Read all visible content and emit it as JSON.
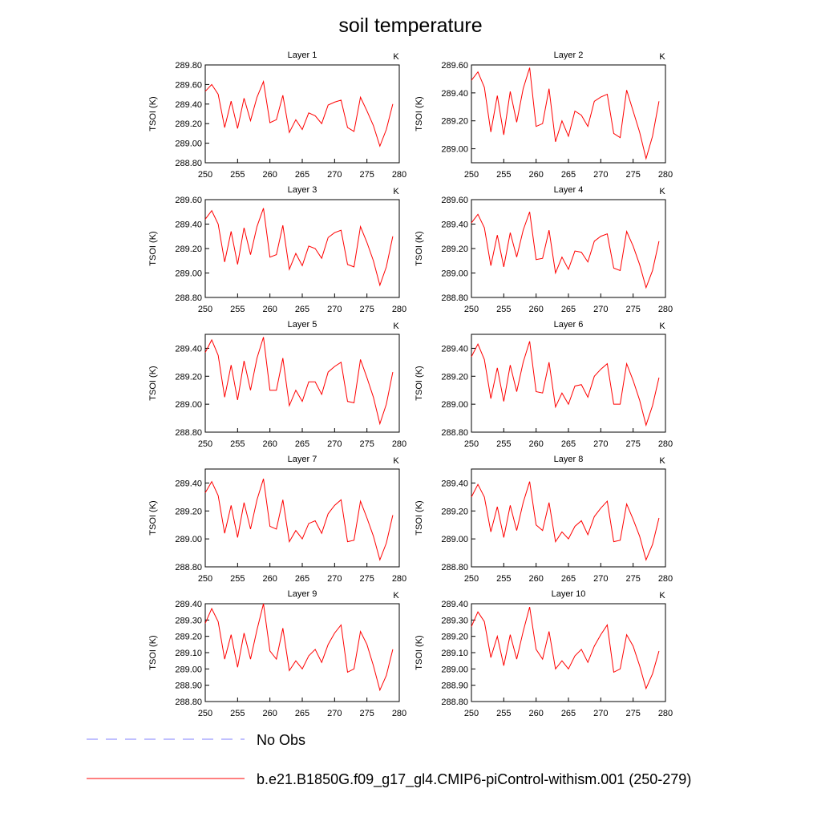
{
  "title": "soil temperature",
  "legend": [
    {
      "name": "No Obs",
      "color": "#8080ff",
      "dash": true
    },
    {
      "name": "b.e21.B1850G.f09_g17_gl4.CMIP6-piControl-withism.001 (250-279)",
      "color": "#ff0000",
      "dash": false
    }
  ],
  "chart_data": [
    {
      "type": "line",
      "title": "Layer 1",
      "unit": "K",
      "y_label": "TSOI  (K)",
      "color": "#ff0000",
      "x": [
        250,
        251,
        252,
        253,
        254,
        255,
        256,
        257,
        258,
        259,
        260,
        261,
        262,
        263,
        264,
        265,
        266,
        267,
        268,
        269,
        270,
        271,
        272,
        273,
        274,
        275,
        276,
        277,
        278,
        279
      ],
      "values": [
        289.53,
        289.6,
        289.5,
        289.16,
        289.43,
        289.15,
        289.46,
        289.23,
        289.47,
        289.63,
        289.21,
        289.24,
        289.49,
        289.11,
        289.24,
        289.14,
        289.31,
        289.28,
        289.2,
        289.39,
        289.42,
        289.44,
        289.16,
        289.12,
        289.47,
        289.33,
        289.18,
        288.97,
        289.14,
        289.4
      ],
      "xlim": [
        250,
        280
      ],
      "xticks": [
        250,
        255,
        260,
        265,
        270,
        275,
        280
      ],
      "ylim": [
        288.8,
        289.8
      ],
      "yticks": [
        {
          "value": 288.8,
          "label": "288.80"
        },
        {
          "value": 289.0,
          "label": "289.00"
        },
        {
          "value": 289.2,
          "label": "289.20"
        },
        {
          "value": 289.4,
          "label": "289.40"
        },
        {
          "value": 289.6,
          "label": "289.60"
        },
        {
          "value": 289.8,
          "label": "289.80"
        }
      ]
    },
    {
      "type": "line",
      "title": "Layer 2",
      "unit": "K",
      "y_label": "TSOI  (K)",
      "color": "#ff0000",
      "x": [
        250,
        251,
        252,
        253,
        254,
        255,
        256,
        257,
        258,
        259,
        260,
        261,
        262,
        263,
        264,
        265,
        266,
        267,
        268,
        269,
        270,
        271,
        272,
        273,
        274,
        275,
        276,
        277,
        278,
        279
      ],
      "values": [
        289.49,
        289.55,
        289.44,
        289.12,
        289.38,
        289.1,
        289.41,
        289.19,
        289.43,
        289.58,
        289.16,
        289.18,
        289.43,
        289.05,
        289.2,
        289.09,
        289.27,
        289.24,
        289.16,
        289.34,
        289.37,
        289.39,
        289.11,
        289.08,
        289.42,
        289.27,
        289.12,
        288.93,
        289.09,
        289.34
      ],
      "xlim": [
        250,
        280
      ],
      "xticks": [
        250,
        255,
        260,
        265,
        270,
        275,
        280
      ],
      "ylim": [
        288.9,
        289.6
      ],
      "yticks": [
        {
          "value": 289.0,
          "label": "289.00"
        },
        {
          "value": 289.2,
          "label": "289.20"
        },
        {
          "value": 289.4,
          "label": "289.40"
        },
        {
          "value": 289.6,
          "label": "289.60"
        }
      ]
    },
    {
      "type": "line",
      "title": "Layer 3",
      "unit": "K",
      "y_label": "TSOI  (K)",
      "color": "#ff0000",
      "x": [
        250,
        251,
        252,
        253,
        254,
        255,
        256,
        257,
        258,
        259,
        260,
        261,
        262,
        263,
        264,
        265,
        266,
        267,
        268,
        269,
        270,
        271,
        272,
        273,
        274,
        275,
        276,
        277,
        278,
        279
      ],
      "values": [
        289.44,
        289.51,
        289.4,
        289.09,
        289.34,
        289.07,
        289.37,
        289.15,
        289.38,
        289.53,
        289.13,
        289.15,
        289.39,
        289.03,
        289.16,
        289.06,
        289.22,
        289.2,
        289.12,
        289.29,
        289.33,
        289.35,
        289.07,
        289.05,
        289.38,
        289.25,
        289.1,
        288.9,
        289.05,
        289.3
      ],
      "xlim": [
        250,
        280
      ],
      "xticks": [
        250,
        255,
        260,
        265,
        270,
        275,
        280
      ],
      "ylim": [
        288.8,
        289.6
      ],
      "yticks": [
        {
          "value": 288.8,
          "label": "288.80"
        },
        {
          "value": 289.0,
          "label": "289.00"
        },
        {
          "value": 289.2,
          "label": "289.20"
        },
        {
          "value": 289.4,
          "label": "289.40"
        },
        {
          "value": 289.6,
          "label": "289.60"
        }
      ]
    },
    {
      "type": "line",
      "title": "Layer 4",
      "unit": "K",
      "y_label": "TSOI  (K)",
      "color": "#ff0000",
      "x": [
        250,
        251,
        252,
        253,
        254,
        255,
        256,
        257,
        258,
        259,
        260,
        261,
        262,
        263,
        264,
        265,
        266,
        267,
        268,
        269,
        270,
        271,
        272,
        273,
        274,
        275,
        276,
        277,
        278,
        279
      ],
      "values": [
        289.41,
        289.48,
        289.37,
        289.06,
        289.31,
        289.05,
        289.33,
        289.13,
        289.35,
        289.5,
        289.11,
        289.12,
        289.35,
        289.0,
        289.13,
        289.03,
        289.18,
        289.17,
        289.09,
        289.26,
        289.3,
        289.32,
        289.04,
        289.02,
        289.34,
        289.22,
        289.07,
        288.88,
        289.02,
        289.26
      ],
      "xlim": [
        250,
        280
      ],
      "xticks": [
        250,
        255,
        260,
        265,
        270,
        275,
        280
      ],
      "ylim": [
        288.8,
        289.6
      ],
      "yticks": [
        {
          "value": 288.8,
          "label": "288.80"
        },
        {
          "value": 289.0,
          "label": "289.00"
        },
        {
          "value": 289.2,
          "label": "289.20"
        },
        {
          "value": 289.4,
          "label": "289.40"
        },
        {
          "value": 289.6,
          "label": "289.60"
        }
      ]
    },
    {
      "type": "line",
      "title": "Layer 5",
      "unit": "K",
      "y_label": "TSOI  (K)",
      "color": "#ff0000",
      "x": [
        250,
        251,
        252,
        253,
        254,
        255,
        256,
        257,
        258,
        259,
        260,
        261,
        262,
        263,
        264,
        265,
        266,
        267,
        268,
        269,
        270,
        271,
        272,
        273,
        274,
        275,
        276,
        277,
        278,
        279
      ],
      "values": [
        289.37,
        289.46,
        289.35,
        289.05,
        289.28,
        289.03,
        289.31,
        289.1,
        289.33,
        289.48,
        289.1,
        289.1,
        289.33,
        288.99,
        289.1,
        289.02,
        289.16,
        289.16,
        289.07,
        289.23,
        289.27,
        289.3,
        289.02,
        289.01,
        289.32,
        289.19,
        289.05,
        288.86,
        289.0,
        289.23
      ],
      "xlim": [
        250,
        280
      ],
      "xticks": [
        250,
        255,
        260,
        265,
        270,
        275,
        280
      ],
      "ylim": [
        288.8,
        289.5
      ],
      "yticks": [
        {
          "value": 288.8,
          "label": "288.80"
        },
        {
          "value": 289.0,
          "label": "289.00"
        },
        {
          "value": 289.2,
          "label": "289.20"
        },
        {
          "value": 289.4,
          "label": "289.40"
        }
      ]
    },
    {
      "type": "line",
      "title": "Layer 6",
      "unit": "K",
      "y_label": "TSOI  (K)",
      "color": "#ff0000",
      "x": [
        250,
        251,
        252,
        253,
        254,
        255,
        256,
        257,
        258,
        259,
        260,
        261,
        262,
        263,
        264,
        265,
        266,
        267,
        268,
        269,
        270,
        271,
        272,
        273,
        274,
        275,
        276,
        277,
        278,
        279
      ],
      "values": [
        289.34,
        289.43,
        289.32,
        289.04,
        289.26,
        289.02,
        289.28,
        289.09,
        289.3,
        289.45,
        289.09,
        289.08,
        289.3,
        288.98,
        289.08,
        289.0,
        289.13,
        289.14,
        289.05,
        289.2,
        289.25,
        289.29,
        289.0,
        289.0,
        289.29,
        289.17,
        289.03,
        288.85,
        288.99,
        289.19
      ],
      "xlim": [
        250,
        280
      ],
      "xticks": [
        250,
        255,
        260,
        265,
        270,
        275,
        280
      ],
      "ylim": [
        288.8,
        289.5
      ],
      "yticks": [
        {
          "value": 288.8,
          "label": "288.80"
        },
        {
          "value": 289.0,
          "label": "289.00"
        },
        {
          "value": 289.2,
          "label": "289.20"
        },
        {
          "value": 289.4,
          "label": "289.40"
        }
      ]
    },
    {
      "type": "line",
      "title": "Layer 7",
      "unit": "K",
      "y_label": "TSOI  (K)",
      "color": "#ff0000",
      "x": [
        250,
        251,
        252,
        253,
        254,
        255,
        256,
        257,
        258,
        259,
        260,
        261,
        262,
        263,
        264,
        265,
        266,
        267,
        268,
        269,
        270,
        271,
        272,
        273,
        274,
        275,
        276,
        277,
        278,
        279
      ],
      "values": [
        289.33,
        289.41,
        289.31,
        289.04,
        289.24,
        289.01,
        289.26,
        289.07,
        289.28,
        289.43,
        289.09,
        289.07,
        289.28,
        288.98,
        289.06,
        289.0,
        289.11,
        289.13,
        289.04,
        289.18,
        289.24,
        289.28,
        288.98,
        288.99,
        289.27,
        289.15,
        289.02,
        288.85,
        288.97,
        289.17
      ],
      "xlim": [
        250,
        280
      ],
      "xticks": [
        250,
        255,
        260,
        265,
        270,
        275,
        280
      ],
      "ylim": [
        288.8,
        289.5
      ],
      "yticks": [
        {
          "value": 288.8,
          "label": "288.80"
        },
        {
          "value": 289.0,
          "label": "289.00"
        },
        {
          "value": 289.2,
          "label": "289.20"
        },
        {
          "value": 289.4,
          "label": "289.40"
        }
      ]
    },
    {
      "type": "line",
      "title": "Layer 8",
      "unit": "K",
      "y_label": "TSOI  (K)",
      "color": "#ff0000",
      "x": [
        250,
        251,
        252,
        253,
        254,
        255,
        256,
        257,
        258,
        259,
        260,
        261,
        262,
        263,
        264,
        265,
        266,
        267,
        268,
        269,
        270,
        271,
        272,
        273,
        274,
        275,
        276,
        277,
        278,
        279
      ],
      "values": [
        289.3,
        289.39,
        289.3,
        289.05,
        289.23,
        289.01,
        289.24,
        289.06,
        289.26,
        289.41,
        289.1,
        289.06,
        289.26,
        288.98,
        289.05,
        289.0,
        289.09,
        289.13,
        289.03,
        289.16,
        289.22,
        289.27,
        288.98,
        288.99,
        289.25,
        289.14,
        289.02,
        288.85,
        288.96,
        289.15
      ],
      "xlim": [
        250,
        280
      ],
      "xticks": [
        250,
        255,
        260,
        265,
        270,
        275,
        280
      ],
      "ylim": [
        288.8,
        289.5
      ],
      "yticks": [
        {
          "value": 288.8,
          "label": "288.80"
        },
        {
          "value": 289.0,
          "label": "289.00"
        },
        {
          "value": 289.2,
          "label": "289.20"
        },
        {
          "value": 289.4,
          "label": "289.40"
        }
      ]
    },
    {
      "type": "line",
      "title": "Layer 9",
      "unit": "K",
      "y_label": "TSOI  (K)",
      "color": "#ff0000",
      "x": [
        250,
        251,
        252,
        253,
        254,
        255,
        256,
        257,
        258,
        259,
        260,
        261,
        262,
        263,
        264,
        265,
        266,
        267,
        268,
        269,
        270,
        271,
        272,
        273,
        274,
        275,
        276,
        277,
        278,
        279
      ],
      "values": [
        289.28,
        289.37,
        289.29,
        289.06,
        289.21,
        289.01,
        289.22,
        289.06,
        289.24,
        289.4,
        289.11,
        289.06,
        289.25,
        288.99,
        289.05,
        289.0,
        289.08,
        289.12,
        289.04,
        289.15,
        289.22,
        289.27,
        288.98,
        289.0,
        289.23,
        289.15,
        289.02,
        288.87,
        288.96,
        289.12
      ],
      "xlim": [
        250,
        280
      ],
      "xticks": [
        250,
        255,
        260,
        265,
        270,
        275,
        280
      ],
      "ylim": [
        288.8,
        289.4
      ],
      "yticks": [
        {
          "value": 288.8,
          "label": "288.80"
        },
        {
          "value": 288.9,
          "label": "288.90"
        },
        {
          "value": 289.0,
          "label": "289.00"
        },
        {
          "value": 289.1,
          "label": "289.10"
        },
        {
          "value": 289.2,
          "label": "289.20"
        },
        {
          "value": 289.3,
          "label": "289.30"
        },
        {
          "value": 289.4,
          "label": "289.40"
        }
      ]
    },
    {
      "type": "line",
      "title": "Layer 10",
      "unit": "K",
      "y_label": "TSOI  (K)",
      "color": "#ff0000",
      "x": [
        250,
        251,
        252,
        253,
        254,
        255,
        256,
        257,
        258,
        259,
        260,
        261,
        262,
        263,
        264,
        265,
        266,
        267,
        268,
        269,
        270,
        271,
        272,
        273,
        274,
        275,
        276,
        277,
        278,
        279
      ],
      "values": [
        289.26,
        289.35,
        289.29,
        289.07,
        289.2,
        289.02,
        289.21,
        289.06,
        289.23,
        289.38,
        289.12,
        289.06,
        289.23,
        289.0,
        289.05,
        289.0,
        289.08,
        289.12,
        289.04,
        289.14,
        289.21,
        289.27,
        288.98,
        289.0,
        289.21,
        289.14,
        289.02,
        288.88,
        288.97,
        289.11
      ],
      "xlim": [
        250,
        280
      ],
      "xticks": [
        250,
        255,
        260,
        265,
        270,
        275,
        280
      ],
      "ylim": [
        288.8,
        289.4
      ],
      "yticks": [
        {
          "value": 288.8,
          "label": "288.80"
        },
        {
          "value": 288.9,
          "label": "288.90"
        },
        {
          "value": 289.0,
          "label": "289.00"
        },
        {
          "value": 289.1,
          "label": "289.10"
        },
        {
          "value": 289.2,
          "label": "289.20"
        },
        {
          "value": 289.3,
          "label": "289.30"
        },
        {
          "value": 289.4,
          "label": "289.40"
        }
      ]
    }
  ]
}
